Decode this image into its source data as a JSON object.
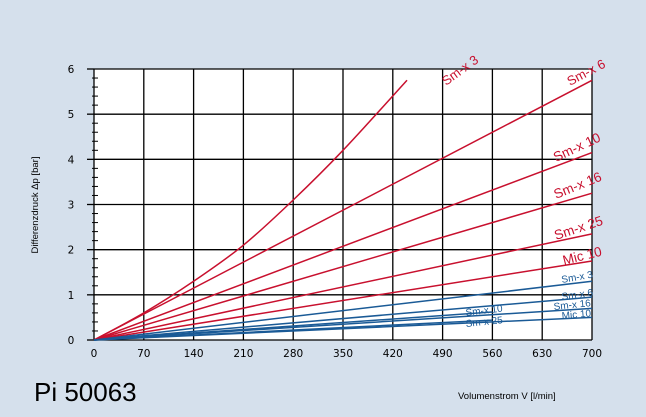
{
  "chart_data": {
    "type": "line",
    "product_code": "Pi 50063",
    "xlabel": "Volumenstrom V [l/min]",
    "ylabel": "Differenzdruck Δp [bar]",
    "xlim": [
      0,
      700
    ],
    "ylim": [
      0,
      6
    ],
    "xticks": [
      "0",
      "70",
      "140",
      "210",
      "280",
      "350",
      "420",
      "490",
      "560",
      "630",
      "700"
    ],
    "yticks": [
      "0",
      "1",
      "2",
      "3",
      "4",
      "5",
      "6"
    ],
    "grid": true,
    "colors": {
      "red": "#c8102e",
      "blue": "#1a5a96",
      "background": "#d5e0ec",
      "plot": "#ffffff"
    },
    "series": [
      {
        "name": "Sm-x 3",
        "color": "#c8102e",
        "points": [
          [
            0,
            0
          ],
          [
            70,
            0.6
          ],
          [
            140,
            1.3
          ],
          [
            210,
            2.1
          ],
          [
            280,
            3.1
          ],
          [
            350,
            4.2
          ],
          [
            440,
            5.75
          ]
        ]
      },
      {
        "name": "Sm-x 6",
        "color": "#c8102e",
        "points": [
          [
            0,
            0
          ],
          [
            700,
            5.75
          ]
        ]
      },
      {
        "name": "Sm-x 10",
        "color": "#c8102e",
        "points": [
          [
            0,
            0
          ],
          [
            700,
            4.15
          ]
        ]
      },
      {
        "name": "Sm-x 16",
        "color": "#c8102e",
        "points": [
          [
            0,
            0
          ],
          [
            700,
            3.25
          ]
        ]
      },
      {
        "name": "Sm-x 25",
        "color": "#c8102e",
        "points": [
          [
            0,
            0
          ],
          [
            700,
            2.35
          ]
        ]
      },
      {
        "name": "Mic 10",
        "color": "#c8102e",
        "points": [
          [
            0,
            0
          ],
          [
            700,
            1.75
          ]
        ]
      },
      {
        "name": "Sm-x 3",
        "color": "#1a5a96",
        "points": [
          [
            0,
            0
          ],
          [
            700,
            1.3
          ]
        ]
      },
      {
        "name": "Sm-x 6",
        "color": "#1a5a96",
        "points": [
          [
            0,
            0
          ],
          [
            700,
            0.95
          ]
        ]
      },
      {
        "name": "Sm-x 10",
        "color": "#1a5a96",
        "points": [
          [
            0,
            0
          ],
          [
            560,
            0.62
          ]
        ]
      },
      {
        "name": "Sm-x 25",
        "color": "#1a5a96",
        "points": [
          [
            0,
            0
          ],
          [
            560,
            0.44
          ]
        ]
      },
      {
        "name": "Sm-x 16",
        "color": "#1a5a96",
        "points": [
          [
            0,
            0
          ],
          [
            700,
            0.7
          ]
        ]
      },
      {
        "name": "Mic 10",
        "color": "#1a5a96",
        "points": [
          [
            0,
            0
          ],
          [
            700,
            0.5
          ]
        ]
      }
    ]
  }
}
